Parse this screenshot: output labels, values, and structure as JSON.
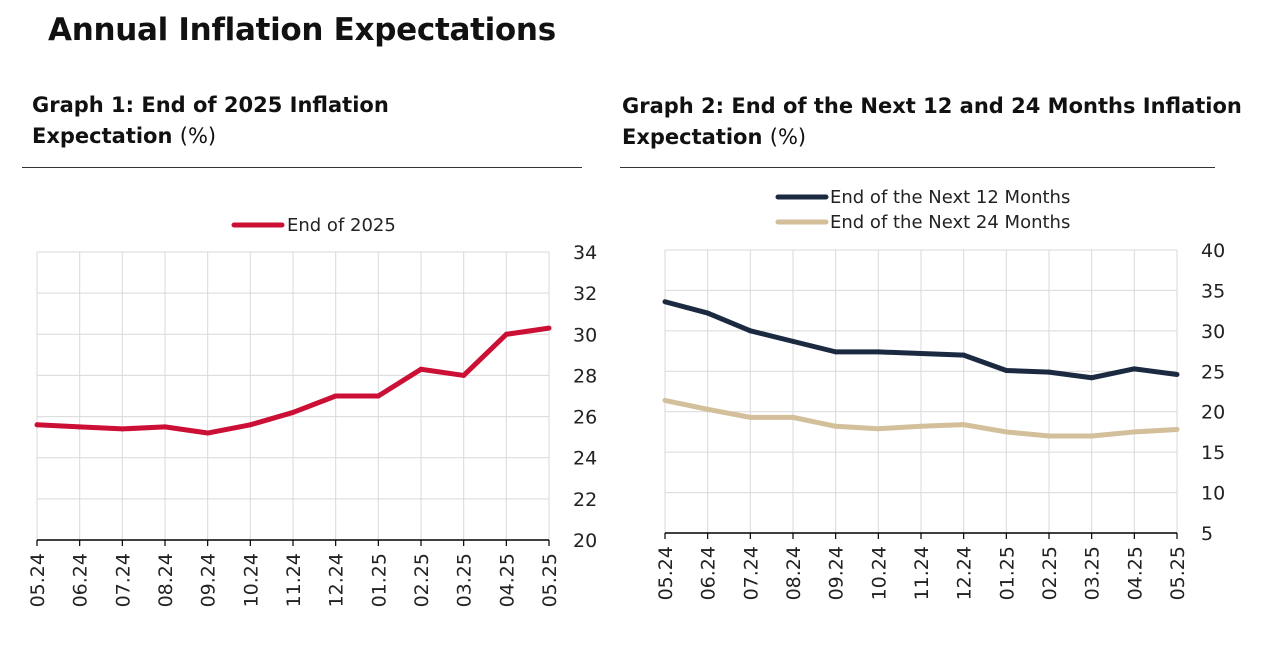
{
  "title": "Annual Inflation Expectations",
  "chart_data": [
    {
      "type": "line",
      "title_bold": "Graph 1: End of 2025 Inflation Expectation",
      "title_unit": "(%)",
      "categories": [
        "05.24",
        "06.24",
        "07.24",
        "08.24",
        "09.24",
        "10.24",
        "11.24",
        "12.24",
        "01.25",
        "02.25",
        "03.25",
        "04.25",
        "05.25"
      ],
      "series": [
        {
          "name": "End of 2025",
          "color": "#cc0f35",
          "values": [
            25.6,
            25.5,
            25.4,
            25.5,
            25.2,
            25.6,
            26.2,
            27.0,
            27.0,
            28.3,
            28.0,
            30.0,
            30.3
          ]
        }
      ],
      "ylim": [
        20,
        34
      ],
      "yticks": [
        20,
        22,
        24,
        26,
        28,
        30,
        32,
        34
      ],
      "yaxis_side": "right",
      "grid": true,
      "legend_position": "top-center"
    },
    {
      "type": "line",
      "title_bold": "Graph 2: End of the Next 12 and 24 Months Inflation Expectation",
      "title_unit": "(%)",
      "categories": [
        "05.24",
        "06.24",
        "07.24",
        "08.24",
        "09.24",
        "10.24",
        "11.24",
        "12.24",
        "01.25",
        "02.25",
        "03.25",
        "04.25",
        "05.25"
      ],
      "series": [
        {
          "name": "End of the Next 12 Months",
          "color": "#1b2a41",
          "values": [
            33.6,
            32.2,
            30.0,
            28.7,
            27.4,
            27.4,
            27.2,
            27.0,
            25.1,
            24.9,
            24.2,
            25.3,
            24.6
          ]
        },
        {
          "name": "End of the Next 24 Months",
          "color": "#d4bf9b",
          "values": [
            21.4,
            20.3,
            19.3,
            19.3,
            18.2,
            17.9,
            18.2,
            18.4,
            17.5,
            17.0,
            17.0,
            17.5,
            17.8
          ]
        }
      ],
      "ylim": [
        5,
        40
      ],
      "yticks": [
        5,
        10,
        15,
        20,
        25,
        30,
        35,
        40
      ],
      "yaxis_side": "right",
      "grid": true,
      "legend_position": "top-center"
    }
  ]
}
